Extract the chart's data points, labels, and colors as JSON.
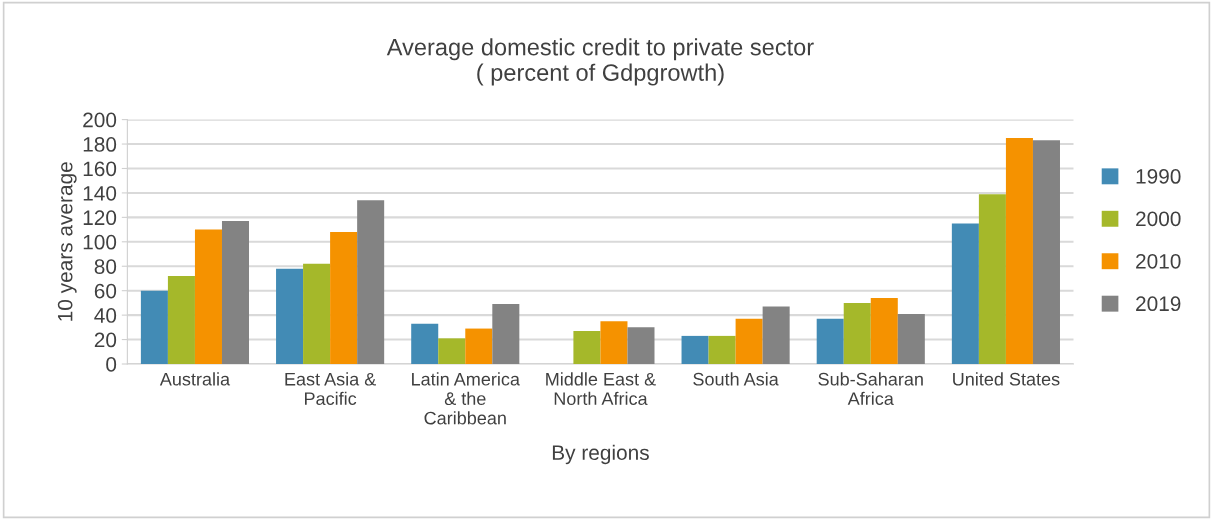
{
  "chart_data": {
    "type": "bar",
    "title": "Average domestic credit to private sector\n( percent of Gdpgrowth)",
    "xlabel": "By regions",
    "ylabel": "10 years average",
    "categories": [
      "Australia",
      "East Asia &\nPacific",
      "Latin America\n& the\nCaribbean",
      "Middle East &\nNorth Africa",
      "South Asia",
      "Sub-Saharan\nAfrica",
      "United States"
    ],
    "series": [
      {
        "name": "1990",
        "color": "#428bb5",
        "values": [
          60,
          78,
          33,
          null,
          23,
          37,
          115
        ]
      },
      {
        "name": "2000",
        "color": "#a5b82a",
        "values": [
          72,
          82,
          21,
          27,
          23,
          50,
          139
        ]
      },
      {
        "name": "2010",
        "color": "#f59200",
        "values": [
          110,
          108,
          29,
          35,
          37,
          54,
          185
        ]
      },
      {
        "name": "2019",
        "color": "#838383",
        "values": [
          117,
          134,
          49,
          30,
          47,
          41,
          183
        ]
      }
    ],
    "ylim": [
      0,
      200
    ],
    "yticks": [
      0,
      20,
      40,
      60,
      80,
      100,
      120,
      140,
      160,
      180,
      200
    ],
    "grid": "y",
    "legend": "right"
  }
}
